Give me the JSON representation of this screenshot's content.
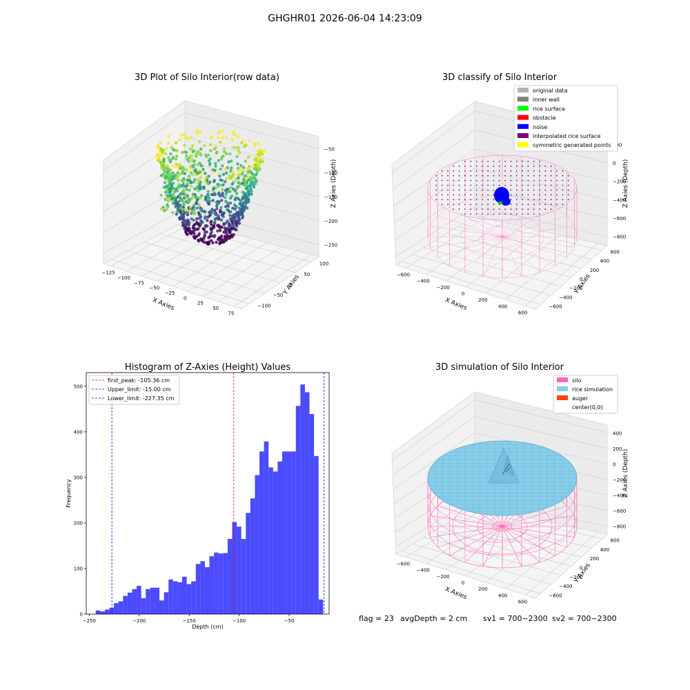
{
  "suptitle": "GHGHR01 2026-06-04 14:23:09",
  "footer": {
    "flag": "flag = 23",
    "avg": "avgDepth = 2 cm",
    "sv1": "sv1 = 700~2300",
    "sv2": "sv2 = 700~2300"
  },
  "colors": {
    "hist_bar": "#4b4bff",
    "first_peak": "#ff0000",
    "limits": "#0000ff",
    "silo": "#ff69b4",
    "rice": "#87ceeb",
    "auger": "#ff4500",
    "noise": "#0000ff"
  },
  "chart_data": [
    {
      "type": "scatter",
      "subtype": "3d",
      "title": "3D Plot of Silo Interior(row data)",
      "xlabel": "X Axies",
      "ylabel": "Y Axies",
      "zlabel": "Z Axies (Depth)",
      "xticks": [
        "−125",
        "−100",
        "−75",
        "−50",
        "−25",
        "0",
        "25",
        "50",
        "75"
      ],
      "yticks": [
        "−100",
        "−50",
        "0",
        "50",
        "100"
      ],
      "zticks": [
        "−250",
        "−200",
        "−150",
        "−100",
        "−50"
      ],
      "colormap": "viridis",
      "grid": true
    },
    {
      "type": "scatter",
      "subtype": "3d",
      "title": "3D classify of Silo Interior",
      "xlabel": "X Axies",
      "ylabel": "Y Axies",
      "zlabel": "Z Axies (Depth)",
      "xticks": [
        "−600",
        "−400",
        "−200",
        "0",
        "200",
        "400",
        "600"
      ],
      "yticks": [
        "−600",
        "−400",
        "−200",
        "0",
        "200",
        "400",
        "600"
      ],
      "zticks": [
        "−800",
        "−600",
        "−400",
        "−200",
        "0",
        "200"
      ],
      "legend": [
        {
          "label": "original data",
          "color": "#b3b3b3"
        },
        {
          "label": "inner wall",
          "color": "#808080"
        },
        {
          "label": "rice surface",
          "color": "#00ff00"
        },
        {
          "label": "obstacle",
          "color": "#ff0000"
        },
        {
          "label": "noise",
          "color": "#0000ff"
        },
        {
          "label": "interpolated rice surface",
          "color": "#800080"
        },
        {
          "label": "symmetric generated points",
          "color": "#ffff00"
        }
      ],
      "legend_position": "top-right",
      "grid": true
    },
    {
      "type": "bar",
      "subtype": "histogram",
      "title": "Histogram of Z-Axies (Height) Values",
      "xlabel": "Depth (cm)",
      "ylabel": "Frequency",
      "xlim": [
        -253,
        -10
      ],
      "ylim": [
        0,
        530
      ],
      "xticks": [
        {
          "value": -250,
          "label": "−250"
        },
        {
          "value": -200,
          "label": "−200"
        },
        {
          "value": -150,
          "label": "−150"
        },
        {
          "value": -100,
          "label": "−100"
        },
        {
          "value": -50,
          "label": "−50"
        }
      ],
      "yticks": [
        {
          "value": 0,
          "label": "0"
        },
        {
          "value": 100,
          "label": "100"
        },
        {
          "value": 200,
          "label": "200"
        },
        {
          "value": 300,
          "label": "300"
        },
        {
          "value": 400,
          "label": "400"
        },
        {
          "value": 500,
          "label": "500"
        }
      ],
      "bin_start": -243.5,
      "bin_width": 4.55,
      "values": [
        8,
        6,
        10,
        14,
        24,
        28,
        40,
        47,
        55,
        62,
        35,
        55,
        58,
        58,
        30,
        48,
        76,
        72,
        70,
        82,
        66,
        72,
        110,
        116,
        103,
        127,
        135,
        133,
        134,
        165,
        202,
        192,
        165,
        222,
        254,
        305,
        357,
        379,
        322,
        313,
        335,
        357,
        357,
        357,
        457,
        504,
        487,
        439,
        347,
        32
      ],
      "lines": [
        {
          "label": "first_peak: -105.36 cm",
          "value": -105.36,
          "color": "#ff0000"
        },
        {
          "label": "Upper_limit: -15.00 cm",
          "value": -15.0,
          "color": "#0000ff"
        },
        {
          "label": "Lower_limit: -227.35 cm",
          "value": -227.35,
          "color": "#0000ff"
        }
      ],
      "legend_position": "top-left"
    },
    {
      "type": "area",
      "subtype": "3d-surface",
      "title": "3D simulation of Silo Interior",
      "xlabel": "X Axies",
      "ylabel": "Y Axies",
      "zlabel": "Z Axies (Depth)",
      "xticks": [
        "−600",
        "−400",
        "−200",
        "0",
        "200",
        "400",
        "600"
      ],
      "yticks": [
        "−600",
        "−400",
        "−200",
        "0",
        "200",
        "400",
        "600"
      ],
      "zticks": [
        "−800",
        "−600",
        "−400",
        "−200",
        "0",
        "200",
        "400"
      ],
      "legend": [
        {
          "label": "silo",
          "color": "#ff69b4"
        },
        {
          "label": "rice simulation",
          "color": "#87ceeb"
        },
        {
          "label": "auger",
          "color": "#ff4500"
        },
        {
          "label": "center(0,0)",
          "color": ""
        }
      ],
      "legend_position": "top-right",
      "grid": true
    }
  ]
}
